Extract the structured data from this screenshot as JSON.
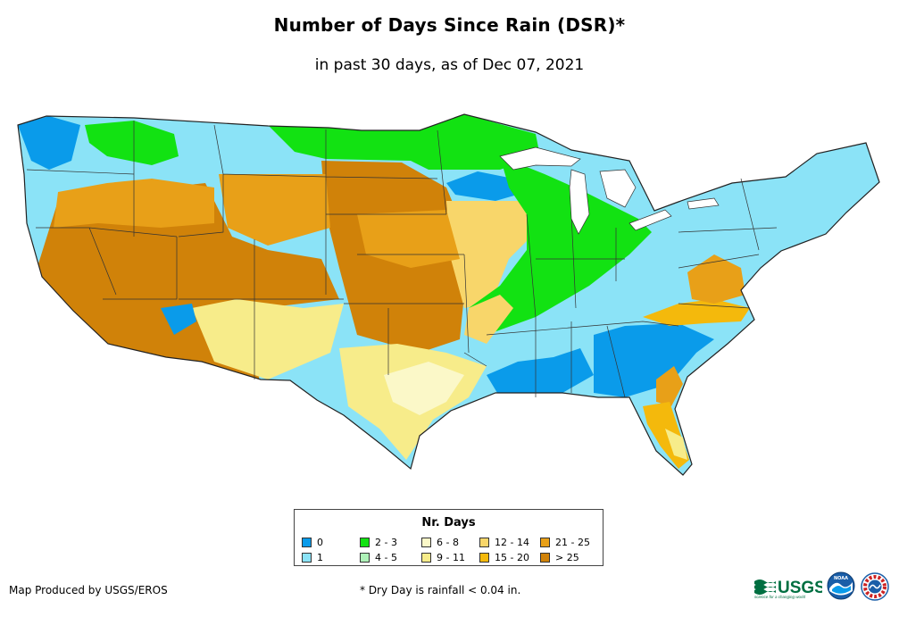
{
  "title": "Number of Days Since Rain (DSR)*",
  "subtitle": "in past 30 days, as of Dec 07, 2021",
  "legend": {
    "title": "Nr. Days",
    "items": [
      {
        "label": "0",
        "color": "#0a9bea"
      },
      {
        "label": "1",
        "color": "#8be3f7"
      },
      {
        "label": "2 - 3",
        "color": "#12e212"
      },
      {
        "label": "4 - 5",
        "color": "#aef2b8"
      },
      {
        "label": "6 - 8",
        "color": "#fbf8c8"
      },
      {
        "label": "9 - 11",
        "color": "#f7ec8a"
      },
      {
        "label": "12 - 14",
        "color": "#f8d66a"
      },
      {
        "label": "15 - 20",
        "color": "#f4b90c"
      },
      {
        "label": "21 - 25",
        "color": "#e8a018"
      },
      {
        "label": "> 25",
        "color": "#d08209"
      }
    ]
  },
  "footer": {
    "producer": "Map Produced by USGS/EROS",
    "footnote": "* Dry Day is rainfall < 0.04 in."
  },
  "logos": {
    "usgs": "USGS",
    "usgs_tagline": "science for a changing world",
    "noaa": "NOAA"
  }
}
